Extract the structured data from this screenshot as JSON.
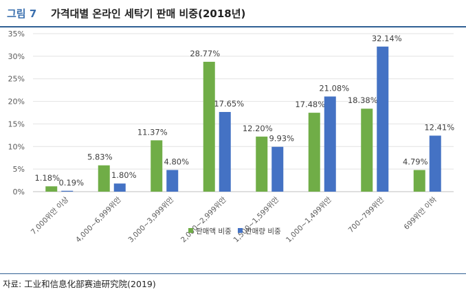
{
  "figure": {
    "number": "그림 7",
    "title": "가격대별 온라인 세탁기 판매 비중(2018년)"
  },
  "source": "자료: 工业和信息化部赛迪研究院(2019)",
  "colors": {
    "series1": "#70ad47",
    "series2": "#4472c4",
    "accent": "#3a6fae"
  },
  "chart_data": {
    "type": "bar",
    "categories": [
      "7,000위안 이상",
      "4,000~6,999위안",
      "3,000~3,999위안",
      "2,000~2,999위안",
      "1,500~1,599위안",
      "1,000~1,499위안",
      "700~799위안",
      "699위안 이하"
    ],
    "series": [
      {
        "name": "판매액 비중",
        "values": [
          1.18,
          5.83,
          11.37,
          28.77,
          12.2,
          17.48,
          18.38,
          4.79
        ],
        "labels": [
          "1.18%",
          "5.83%",
          "11.37%",
          "28.77%",
          "12.20%",
          "17.48%",
          "18.38%",
          "4.79%"
        ]
      },
      {
        "name": "판매량 비중",
        "values": [
          0.19,
          1.8,
          4.8,
          17.65,
          9.93,
          21.08,
          32.14,
          12.41
        ],
        "labels": [
          "0.19%",
          "1.80%",
          "4.80%",
          "17.65%",
          "9.93%",
          "21.08%",
          "32.14%",
          "12.41%"
        ]
      }
    ],
    "yticks": [
      "0%",
      "5%",
      "10%",
      "15%",
      "20%",
      "25%",
      "30%",
      "35%"
    ],
    "ylim": [
      0,
      35
    ],
    "grid": true,
    "legend": "bottom"
  }
}
